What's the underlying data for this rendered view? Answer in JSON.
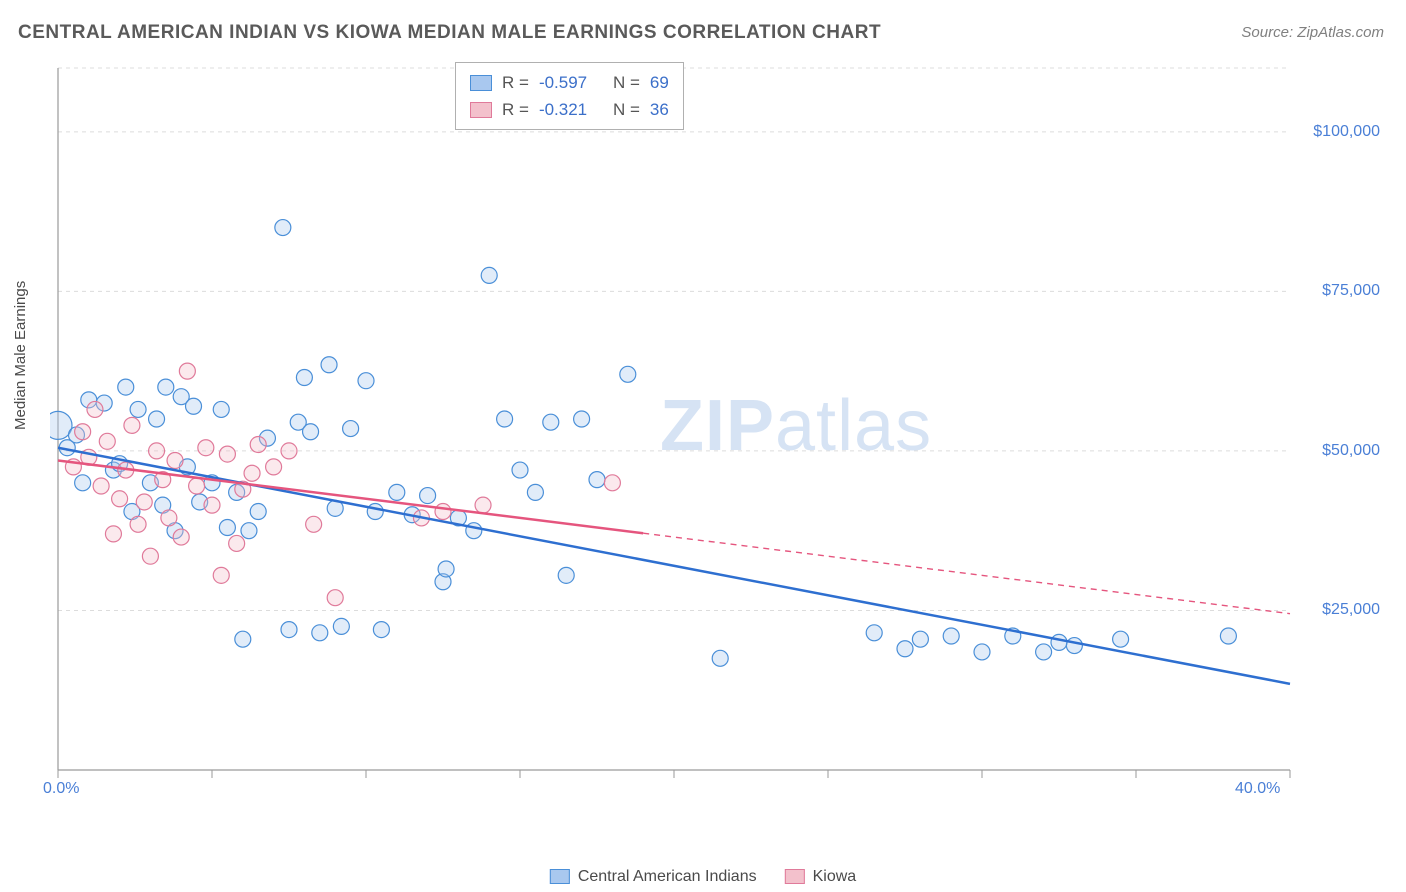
{
  "title": "CENTRAL AMERICAN INDIAN VS KIOWA MEDIAN MALE EARNINGS CORRELATION CHART",
  "source_prefix": "Source: ",
  "source": "ZipAtlas.com",
  "ylabel": "Median Male Earnings",
  "watermark_bold": "ZIP",
  "watermark_rest": "atlas",
  "chart": {
    "type": "scatter",
    "background_color": "#ffffff",
    "grid_color": "#dcdcdc",
    "axis_color": "#9a9a9a",
    "tick_color": "#9a9a9a",
    "xlim": [
      0,
      40
    ],
    "ylim": [
      0,
      110000
    ],
    "y_gridlines": [
      25000,
      50000,
      75000,
      100000,
      110000
    ],
    "y_tick_labels": [
      {
        "v": 25000,
        "label": "$25,000"
      },
      {
        "v": 50000,
        "label": "$50,000"
      },
      {
        "v": 75000,
        "label": "$75,000"
      },
      {
        "v": 100000,
        "label": "$100,000"
      }
    ],
    "x_ticks": [
      0,
      5,
      10,
      15,
      20,
      25,
      30,
      35,
      40
    ],
    "x_tick_labels": [
      {
        "v": 0,
        "label": "0.0%"
      },
      {
        "v": 40,
        "label": "40.0%"
      }
    ],
    "marker_radius": 8,
    "marker_stroke_width": 1.2,
    "marker_fill_opacity": 0.35,
    "trend_line_width": 2.5,
    "trend_dash": "6 5"
  },
  "series": [
    {
      "name": "Central American Indians",
      "color_fill": "#a9c8ef",
      "color_stroke": "#4a8fd8",
      "trend_color": "#2e6fd0",
      "R": "-0.597",
      "N": "69",
      "trend": {
        "x1": 0,
        "y1": 50500,
        "x2": 40,
        "y2": 13500
      },
      "solid_until_x": 40,
      "points": [
        {
          "x": 0.0,
          "y": 54000,
          "r": 14
        },
        {
          "x": 0.3,
          "y": 50500
        },
        {
          "x": 0.6,
          "y": 52500
        },
        {
          "x": 0.8,
          "y": 45000
        },
        {
          "x": 1.0,
          "y": 58000
        },
        {
          "x": 1.5,
          "y": 57500
        },
        {
          "x": 1.8,
          "y": 47000
        },
        {
          "x": 2.0,
          "y": 48000
        },
        {
          "x": 2.2,
          "y": 60000
        },
        {
          "x": 2.4,
          "y": 40500
        },
        {
          "x": 2.6,
          "y": 56500
        },
        {
          "x": 3.0,
          "y": 45000
        },
        {
          "x": 3.2,
          "y": 55000
        },
        {
          "x": 3.4,
          "y": 41500
        },
        {
          "x": 3.5,
          "y": 60000
        },
        {
          "x": 3.8,
          "y": 37500
        },
        {
          "x": 4.0,
          "y": 58500
        },
        {
          "x": 4.2,
          "y": 47500
        },
        {
          "x": 4.4,
          "y": 57000
        },
        {
          "x": 4.6,
          "y": 42000
        },
        {
          "x": 5.0,
          "y": 45000
        },
        {
          "x": 5.3,
          "y": 56500
        },
        {
          "x": 5.5,
          "y": 38000
        },
        {
          "x": 5.8,
          "y": 43500
        },
        {
          "x": 6.0,
          "y": 20500
        },
        {
          "x": 6.2,
          "y": 37500
        },
        {
          "x": 6.5,
          "y": 40500
        },
        {
          "x": 6.8,
          "y": 52000
        },
        {
          "x": 7.3,
          "y": 85000
        },
        {
          "x": 7.5,
          "y": 22000
        },
        {
          "x": 7.8,
          "y": 54500
        },
        {
          "x": 8.0,
          "y": 61500
        },
        {
          "x": 8.2,
          "y": 53000
        },
        {
          "x": 8.5,
          "y": 21500
        },
        {
          "x": 8.8,
          "y": 63500
        },
        {
          "x": 9.0,
          "y": 41000
        },
        {
          "x": 9.2,
          "y": 22500
        },
        {
          "x": 9.5,
          "y": 53500
        },
        {
          "x": 10.0,
          "y": 61000
        },
        {
          "x": 10.3,
          "y": 40500
        },
        {
          "x": 10.5,
          "y": 22000
        },
        {
          "x": 11.0,
          "y": 43500
        },
        {
          "x": 11.5,
          "y": 40000
        },
        {
          "x": 12.0,
          "y": 43000
        },
        {
          "x": 12.5,
          "y": 29500
        },
        {
          "x": 12.6,
          "y": 31500
        },
        {
          "x": 13.0,
          "y": 39500
        },
        {
          "x": 13.5,
          "y": 37500
        },
        {
          "x": 14.0,
          "y": 77500
        },
        {
          "x": 14.5,
          "y": 55000
        },
        {
          "x": 15.0,
          "y": 47000
        },
        {
          "x": 15.5,
          "y": 43500
        },
        {
          "x": 16.0,
          "y": 54500
        },
        {
          "x": 16.5,
          "y": 30500
        },
        {
          "x": 17.0,
          "y": 55000
        },
        {
          "x": 17.5,
          "y": 45500
        },
        {
          "x": 18.5,
          "y": 62000
        },
        {
          "x": 21.5,
          "y": 17500
        },
        {
          "x": 26.5,
          "y": 21500
        },
        {
          "x": 27.5,
          "y": 19000
        },
        {
          "x": 28.0,
          "y": 20500
        },
        {
          "x": 29.0,
          "y": 21000
        },
        {
          "x": 30.0,
          "y": 18500
        },
        {
          "x": 31.0,
          "y": 21000
        },
        {
          "x": 32.0,
          "y": 18500
        },
        {
          "x": 32.5,
          "y": 20000
        },
        {
          "x": 33.0,
          "y": 19500
        },
        {
          "x": 34.5,
          "y": 20500
        },
        {
          "x": 38.0,
          "y": 21000
        }
      ]
    },
    {
      "name": "Kiowa",
      "color_fill": "#f3c1cc",
      "color_stroke": "#e07a9a",
      "trend_color": "#e5557e",
      "R": "-0.321",
      "N": "36",
      "trend": {
        "x1": 0,
        "y1": 48500,
        "x2": 40,
        "y2": 24500
      },
      "solid_until_x": 19,
      "points": [
        {
          "x": 0.5,
          "y": 47500
        },
        {
          "x": 0.8,
          "y": 53000
        },
        {
          "x": 1.0,
          "y": 49000
        },
        {
          "x": 1.2,
          "y": 56500
        },
        {
          "x": 1.4,
          "y": 44500
        },
        {
          "x": 1.6,
          "y": 51500
        },
        {
          "x": 1.8,
          "y": 37000
        },
        {
          "x": 2.0,
          "y": 42500
        },
        {
          "x": 2.2,
          "y": 47000
        },
        {
          "x": 2.4,
          "y": 54000
        },
        {
          "x": 2.6,
          "y": 38500
        },
        {
          "x": 2.8,
          "y": 42000
        },
        {
          "x": 3.0,
          "y": 33500
        },
        {
          "x": 3.2,
          "y": 50000
        },
        {
          "x": 3.4,
          "y": 45500
        },
        {
          "x": 3.6,
          "y": 39500
        },
        {
          "x": 3.8,
          "y": 48500
        },
        {
          "x": 4.0,
          "y": 36500
        },
        {
          "x": 4.2,
          "y": 62500
        },
        {
          "x": 4.5,
          "y": 44500
        },
        {
          "x": 4.8,
          "y": 50500
        },
        {
          "x": 5.0,
          "y": 41500
        },
        {
          "x": 5.3,
          "y": 30500
        },
        {
          "x": 5.5,
          "y": 49500
        },
        {
          "x": 5.8,
          "y": 35500
        },
        {
          "x": 6.0,
          "y": 44000
        },
        {
          "x": 6.3,
          "y": 46500
        },
        {
          "x": 6.5,
          "y": 51000
        },
        {
          "x": 7.0,
          "y": 47500
        },
        {
          "x": 7.5,
          "y": 50000
        },
        {
          "x": 8.3,
          "y": 38500
        },
        {
          "x": 9.0,
          "y": 27000
        },
        {
          "x": 11.8,
          "y": 39500
        },
        {
          "x": 12.5,
          "y": 40500
        },
        {
          "x": 13.8,
          "y": 41500
        },
        {
          "x": 18.0,
          "y": 45000
        }
      ]
    }
  ],
  "stat_labels": {
    "R": "R =",
    "N": "N ="
  },
  "legend_bottom": {
    "items": [
      "Central American Indians",
      "Kiowa"
    ]
  }
}
